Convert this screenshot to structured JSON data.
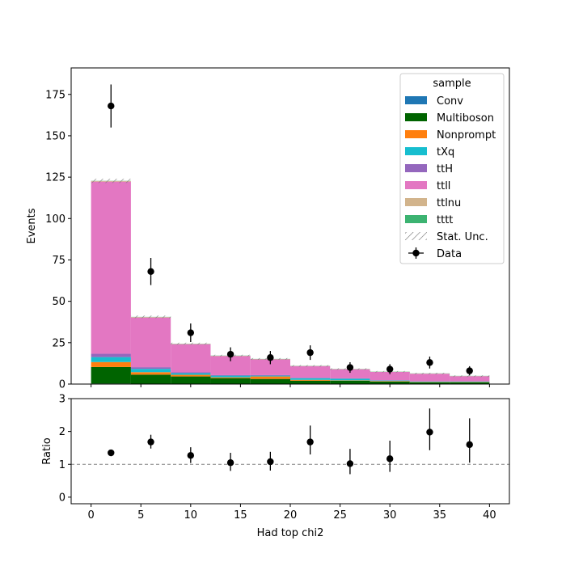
{
  "chart_data": {
    "type": "bar",
    "stacked": true,
    "xlabel": "Had top chi2",
    "ylabel": "Events",
    "ratio_ylabel": "Ratio",
    "bin_edges": [
      0,
      4,
      8,
      12,
      16,
      20,
      24,
      28,
      32,
      36,
      40
    ],
    "xlim": [
      -2,
      42
    ],
    "ylim": [
      0,
      191
    ],
    "ratio_ylim": [
      -0.2,
      3
    ],
    "x_ticks": [
      0,
      5,
      10,
      15,
      20,
      25,
      30,
      35,
      40
    ],
    "y_ticks": [
      0,
      25,
      50,
      75,
      100,
      125,
      150,
      175
    ],
    "ratio_ticks": [
      0,
      1,
      2,
      3
    ],
    "legend": {
      "title": "sample",
      "position": "top-right"
    },
    "series": [
      {
        "name": "Conv",
        "color": "#1f77b4",
        "values": [
          0.3,
          0.2,
          0.1,
          0.1,
          0.1,
          0.05,
          0.05,
          0.05,
          0.05,
          0.05
        ]
      },
      {
        "name": "Multiboson",
        "color": "#006400",
        "values": [
          10,
          5.5,
          4.5,
          3.5,
          3,
          2,
          2,
          1.5,
          1,
          1
        ]
      },
      {
        "name": "Nonprompt",
        "color": "#ff7f0e",
        "values": [
          3,
          1.5,
          1,
          0.5,
          1.5,
          0.5,
          0.2,
          0.3,
          0.2,
          0.2
        ]
      },
      {
        "name": "tXq",
        "color": "#17becf",
        "values": [
          3,
          2,
          1,
          1,
          0.5,
          1,
          1,
          0.3,
          0.3,
          0.3
        ]
      },
      {
        "name": "ttH",
        "color": "#9467bd",
        "values": [
          2,
          1,
          0.5,
          0.3,
          0.3,
          0.3,
          0.2,
          0.2,
          0.2,
          0.2
        ]
      },
      {
        "name": "ttll",
        "color": "#e377c2",
        "values": [
          104,
          30,
          17,
          11.5,
          9.5,
          7,
          5.5,
          5,
          4.5,
          3
        ]
      },
      {
        "name": "ttlnu",
        "color": "#d2b48c",
        "values": [
          0.4,
          0.3,
          0.2,
          0.2,
          0.2,
          0.1,
          0.1,
          0.1,
          0.1,
          0.1
        ]
      },
      {
        "name": "tttt",
        "color": "#3cb371",
        "values": [
          0.1,
          0.1,
          0.1,
          0.1,
          0.1,
          0.1,
          0.1,
          0.1,
          0.1,
          0.1
        ]
      }
    ],
    "stat_unc": {
      "name": "Stat. Unc.",
      "values": [
        1.3,
        0.8,
        0.6,
        0.5,
        0.5,
        0.4,
        0.4,
        0.35,
        0.35,
        0.3
      ]
    },
    "data": {
      "name": "Data",
      "x": [
        2,
        6,
        10,
        14,
        18,
        22,
        26,
        30,
        34,
        38
      ],
      "y": [
        168,
        68,
        31,
        18,
        16,
        19,
        10,
        9,
        13,
        8
      ],
      "err": [
        13,
        8.2,
        5.6,
        4.2,
        4,
        4.4,
        3.2,
        3,
        3.6,
        2.8
      ]
    },
    "ratio": {
      "x": [
        2,
        6,
        10,
        14,
        18,
        22,
        26,
        30,
        34,
        38
      ],
      "y": [
        1.35,
        1.68,
        1.27,
        1.05,
        1.08,
        1.68,
        1.02,
        1.17,
        1.98,
        1.6
      ],
      "err_low": [
        0.1,
        0.2,
        0.23,
        0.25,
        0.27,
        0.38,
        0.32,
        0.4,
        0.55,
        0.55
      ],
      "err_high": [
        0.1,
        0.22,
        0.25,
        0.3,
        0.3,
        0.5,
        0.45,
        0.55,
        0.72,
        0.8
      ],
      "reference": 1
    }
  }
}
